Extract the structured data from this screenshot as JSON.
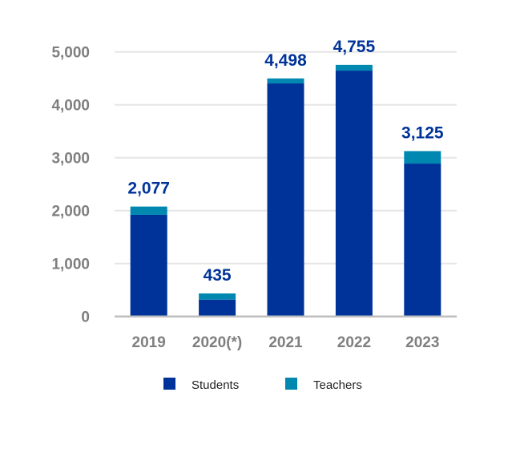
{
  "chart_data": {
    "type": "bar",
    "stacked": true,
    "categories": [
      "2019",
      "2020(*)",
      "2021",
      "2022",
      "2023"
    ],
    "series": [
      {
        "name": "Students",
        "color": "#00339A",
        "values": [
          1920,
          318,
          4404,
          4646,
          2889
        ]
      },
      {
        "name": "Teachers",
        "color": "#0088B0",
        "values": [
          157,
          117,
          94,
          109,
          236
        ]
      }
    ],
    "totals": [
      2077,
      435,
      4498,
      4755,
      3125
    ],
    "total_labels": [
      "2,077",
      "435",
      "4,498",
      "4,755",
      "3,125"
    ],
    "yticks": [
      0,
      1000,
      2000,
      3000,
      4000,
      5000
    ],
    "ytick_labels": [
      "0",
      "1,000",
      "2,000",
      "3,000",
      "4,000",
      "5,000"
    ],
    "ylim": [
      0,
      5000
    ],
    "grid": true,
    "legend_position": "bottom",
    "label_color": "#00339A",
    "tick_color": "#7F7F7F"
  }
}
